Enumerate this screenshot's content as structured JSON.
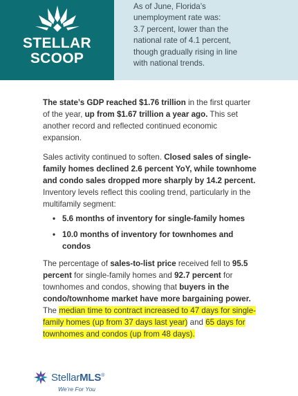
{
  "header": {
    "logo_line1": "STELLAR",
    "logo_line2": "SCOOP",
    "quote_lines": [
      "As of June, Florida’s",
      "unemployment rate was:",
      "3.7 percent, lower than the",
      "national rate of 4.1 percent,",
      "though gradually rising in line",
      "with national trends."
    ]
  },
  "content": {
    "p1": {
      "bold1": "The state’s GDP reached $1.76 trillion",
      "text1": " in the first quarter of the year, ",
      "bold2": "up from $1.67 trillion a year ago.",
      "text2": " This set another record and reflected continued economic expansion."
    },
    "p2": {
      "text1": "Sales activity continued to soften. ",
      "bold1": "Closed sales of single-family homes declined 2.6 percent YoY, while townhome and condo sales dropped more sharply by 14.2 percent.",
      "text2": " Inventory levels reflect this cooling trend, particularly in the multifamily segment:"
    },
    "bullets": [
      "5.6 months of inventory for single-family homes",
      "10.0 months of inventory for townhomes and condos"
    ],
    "p3": {
      "t1": "The percentage of ",
      "b1": "sales-to-list price",
      "t2": " received fell to ",
      "b2": "95.5 percent",
      "t3": " for single-family homes and ",
      "b3": "92.7 percent",
      "t4": " for townhomes and condos, showing that ",
      "b4": "buyers in the condo/townhome market have more bargaining power.",
      "t5": " The ",
      "h1": "median time to contract increased to 47 days for single-family homes (up from 37 days last year)",
      "t6": " and ",
      "h2": "65 days for townhomes and condos (up from 48 days)."
    }
  },
  "footer": {
    "brand_light": "Stellar",
    "brand_bold": "MLS",
    "registered": "®",
    "tagline": "We’re For You"
  },
  "colors": {
    "logo_panel": "#0d6e73",
    "quote_panel": "#d3e6ec",
    "highlight": "#fdfc2a",
    "brand_blue": "#2d5d94"
  }
}
